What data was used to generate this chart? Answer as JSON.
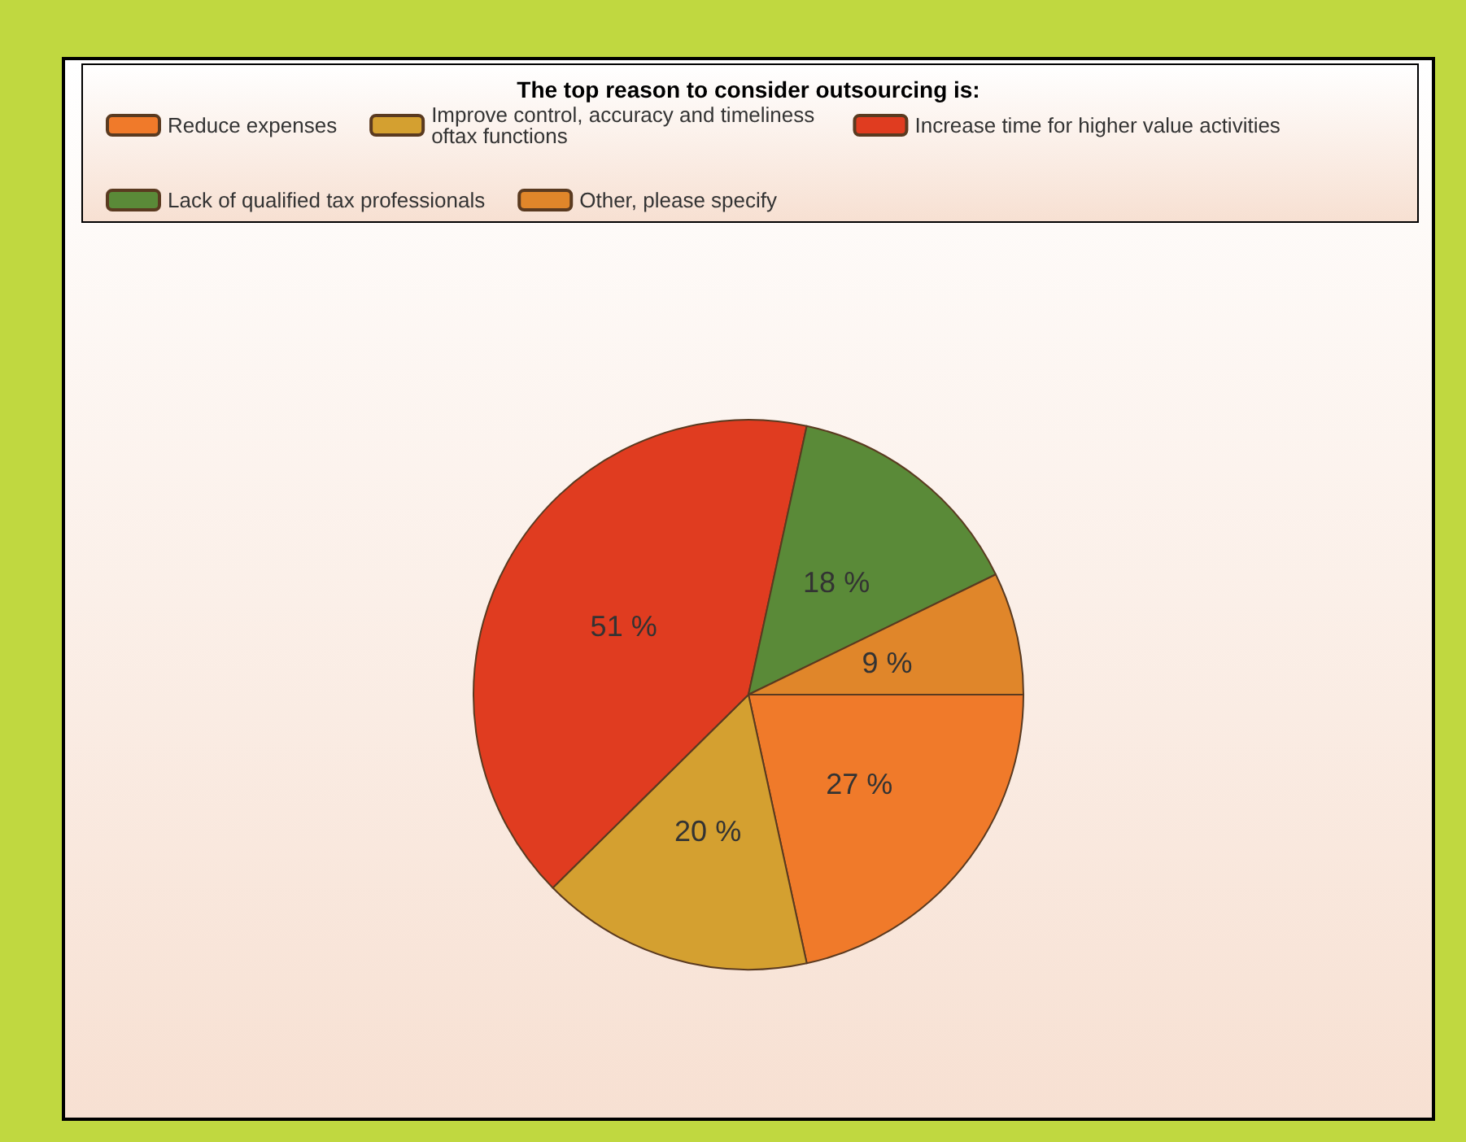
{
  "chart_data": {
    "type": "pie",
    "title": "The top reason to consider outsourcing is:",
    "categories": [
      "Reduce expenses",
      "Improve control, accuracy and timeliness oftax functions",
      "Increase time for higher value activities",
      "Lack of qualified tax professionals",
      "Other, please specify"
    ],
    "values": [
      27,
      20,
      51,
      18,
      9
    ],
    "colors": [
      "#f07a2a",
      "#d4a030",
      "#e03c20",
      "#5a8a38",
      "#e0862a"
    ],
    "value_labels": [
      "27 %",
      "20 %",
      "51 %",
      "18 %",
      "9 %"
    ],
    "legend": "top"
  }
}
